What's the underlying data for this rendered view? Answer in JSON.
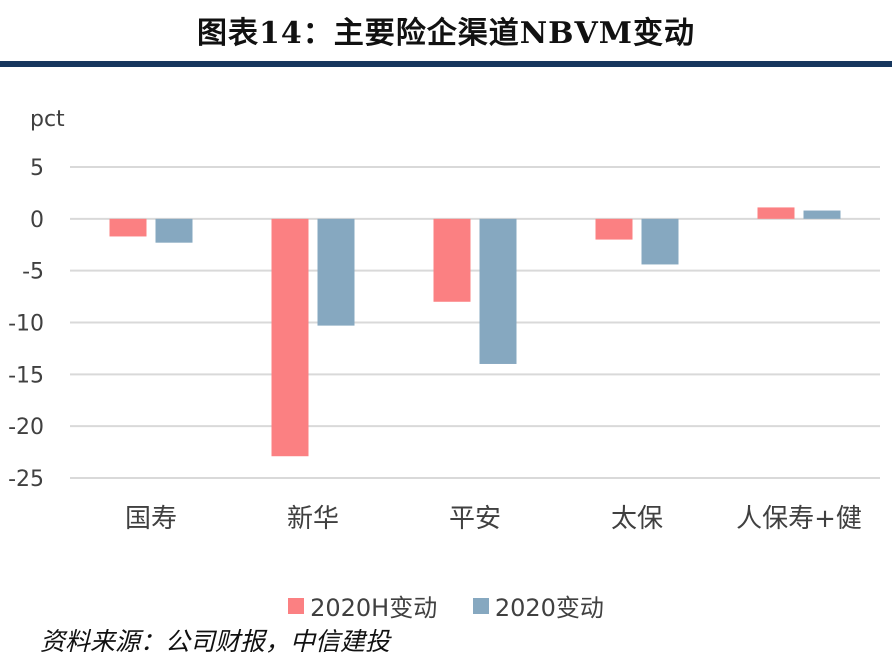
{
  "title": "图表14：主要险企渠道NBVM变动",
  "source": "资料来源：公司财报，中信建投",
  "colors": {
    "s1": "#fb8082",
    "s2": "#86a8c0",
    "grid": "#d9d9d9",
    "rule": "#17375e"
  },
  "chart_data": {
    "type": "bar",
    "ylabel": "pct",
    "ylim": [
      -25,
      5
    ],
    "yticks": [
      5,
      0,
      -5,
      -10,
      -15,
      -20,
      -25
    ],
    "categories": [
      "国寿",
      "新华",
      "平安",
      "太保",
      "人保寿+健"
    ],
    "series": [
      {
        "name": "2020H变动",
        "values": [
          -1.7,
          -22.9,
          -8.0,
          -2.0,
          1.1
        ]
      },
      {
        "name": "2020变动",
        "values": [
          -2.3,
          -10.3,
          -14.0,
          -4.4,
          0.8
        ]
      }
    ],
    "legend": "bottom"
  }
}
